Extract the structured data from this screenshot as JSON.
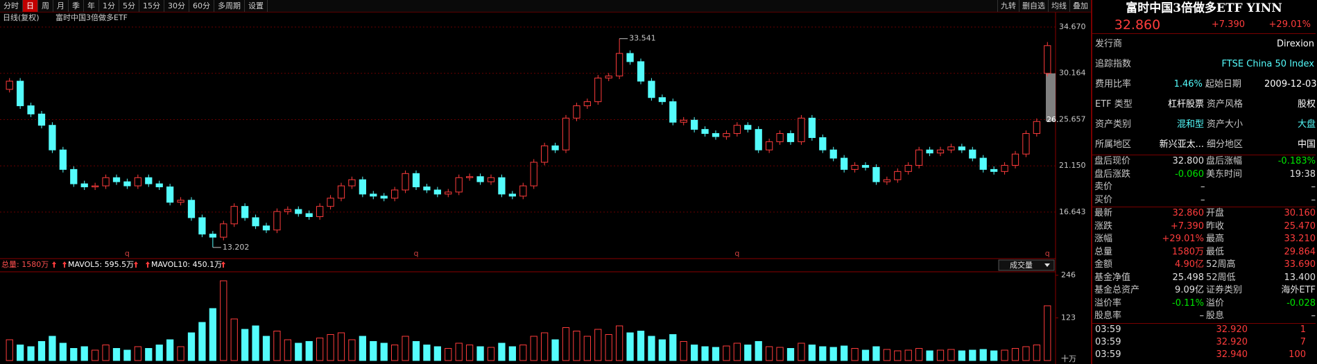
{
  "toolbar": {
    "tabs": [
      "分时",
      "日",
      "周",
      "月",
      "季",
      "年",
      "1分",
      "5分",
      "15分",
      "30分",
      "60分",
      "多周期",
      "设置"
    ],
    "active": "日",
    "tools": [
      "九转",
      "删自选",
      "均线",
      "叠加"
    ]
  },
  "chart_data": [
    {
      "type": "candlestick",
      "title": "日线(复权)",
      "subtitle": "富时中国3倍做多ETF",
      "open": [
        28.6,
        29.4,
        27.0,
        26.2,
        25.1,
        22.7,
        20.8,
        19.4,
        19.1,
        19.2,
        20.0,
        19.6,
        19.2,
        20.0,
        19.4,
        19.1,
        17.6,
        17.8,
        16.1,
        14.5,
        14.2,
        15.5,
        17.2,
        16.1,
        15.3,
        14.9,
        16.7,
        16.9,
        16.5,
        16.2,
        17.2,
        18.0,
        19.2,
        19.8,
        18.4,
        18.2,
        18.0,
        18.8,
        20.4,
        19.1,
        18.8,
        18.4,
        18.6,
        20.0,
        20.1,
        19.6,
        20.0,
        18.4,
        18.2,
        19.2,
        21.5,
        23.1,
        22.7,
        25.8,
        27.0,
        27.4,
        29.7,
        29.9,
        32.1,
        31.3,
        29.4,
        27.8,
        27.4,
        25.4,
        25.6,
        24.7,
        24.3,
        24.0,
        24.3,
        25.1,
        24.7,
        22.7,
        23.5,
        24.3,
        23.5,
        25.8,
        23.9,
        22.7,
        21.9,
        20.8,
        21.2,
        21.0,
        19.6,
        19.8,
        20.6,
        21.2,
        22.7,
        22.4,
        22.7,
        23.0,
        22.7,
        21.9,
        20.8,
        20.6,
        21.2,
        22.3,
        24.3,
        30.16
      ],
      "high": [
        29.7,
        29.7,
        27.3,
        26.5,
        25.4,
        23.0,
        21.1,
        19.7,
        19.5,
        20.3,
        20.3,
        19.9,
        20.3,
        20.3,
        19.7,
        19.4,
        18.1,
        18.1,
        16.4,
        14.8,
        15.8,
        17.5,
        17.5,
        16.4,
        15.6,
        17.0,
        17.2,
        17.2,
        16.8,
        17.5,
        18.3,
        19.5,
        20.1,
        20.1,
        18.7,
        18.5,
        19.1,
        20.7,
        20.7,
        19.4,
        19.1,
        18.9,
        20.3,
        20.4,
        20.4,
        20.3,
        20.3,
        18.7,
        19.5,
        21.8,
        23.4,
        23.4,
        26.1,
        27.3,
        27.7,
        30.0,
        30.2,
        33.541,
        32.4,
        31.6,
        29.7,
        28.1,
        27.7,
        25.9,
        25.9,
        25.0,
        24.6,
        24.6,
        25.4,
        25.4,
        25.0,
        23.8,
        24.6,
        24.6,
        26.1,
        26.1,
        24.2,
        23.0,
        22.2,
        21.5,
        21.5,
        21.3,
        20.1,
        20.9,
        21.5,
        23.0,
        23.0,
        23.0,
        23.3,
        23.3,
        23.0,
        22.2,
        21.1,
        21.5,
        22.6,
        24.6,
        25.77,
        33.21
      ],
      "low": [
        28.3,
        26.7,
        25.9,
        24.8,
        22.4,
        20.5,
        19.1,
        18.8,
        18.8,
        18.9,
        19.3,
        18.9,
        18.9,
        19.1,
        18.8,
        17.3,
        17.3,
        15.8,
        14.2,
        13.202,
        13.9,
        15.2,
        15.8,
        15.0,
        14.6,
        14.6,
        16.4,
        16.2,
        15.9,
        15.9,
        16.9,
        17.7,
        18.9,
        18.1,
        17.9,
        17.7,
        17.7,
        18.5,
        18.8,
        18.5,
        18.1,
        18.1,
        18.3,
        19.7,
        19.3,
        19.3,
        18.1,
        17.9,
        17.9,
        18.9,
        21.2,
        22.4,
        22.4,
        25.5,
        26.7,
        27.1,
        29.4,
        29.6,
        31.0,
        29.1,
        27.5,
        27.1,
        25.1,
        25.1,
        24.4,
        24.0,
        23.7,
        23.7,
        24.0,
        24.4,
        22.4,
        22.4,
        23.2,
        23.2,
        23.2,
        23.6,
        22.4,
        21.6,
        20.5,
        20.5,
        20.7,
        19.3,
        19.3,
        19.5,
        20.3,
        20.9,
        22.1,
        22.1,
        22.4,
        22.4,
        21.6,
        20.5,
        20.3,
        20.3,
        20.9,
        22.0,
        24.0,
        29.864
      ],
      "close": [
        29.4,
        27.0,
        26.2,
        25.1,
        22.7,
        20.8,
        19.4,
        19.1,
        19.2,
        20.0,
        19.6,
        19.2,
        20.0,
        19.4,
        19.1,
        17.6,
        17.8,
        16.1,
        14.5,
        14.2,
        15.5,
        17.2,
        16.1,
        15.3,
        14.9,
        16.7,
        16.9,
        16.5,
        16.2,
        17.2,
        18.0,
        19.2,
        19.8,
        18.4,
        18.2,
        18.0,
        18.8,
        20.4,
        19.1,
        18.8,
        18.4,
        18.6,
        20.0,
        20.1,
        19.6,
        20.0,
        18.4,
        18.2,
        19.2,
        21.5,
        23.1,
        22.7,
        25.8,
        27.0,
        27.4,
        29.7,
        29.9,
        32.1,
        31.3,
        29.4,
        27.8,
        27.4,
        25.4,
        25.6,
        24.7,
        24.3,
        24.0,
        24.3,
        25.1,
        24.7,
        22.7,
        23.5,
        24.3,
        23.5,
        25.8,
        23.9,
        22.7,
        21.9,
        20.8,
        21.2,
        21.0,
        19.6,
        19.8,
        20.6,
        21.2,
        22.7,
        22.4,
        22.7,
        23.0,
        22.7,
        21.9,
        20.8,
        20.6,
        21.2,
        22.3,
        24.3,
        25.47,
        32.86
      ],
      "up_color": "#ff3c3c",
      "down_color": "#54fcfc",
      "ylim": [
        12.18,
        36.09
      ],
      "yticks": [
        16.643,
        {
          "value": 21.15,
          "label": "21.150"
        },
        25.657,
        30.164,
        {
          "value": 34.67,
          "label": "34.670"
        }
      ],
      "grid": true,
      "annotations": [
        "26."
      ],
      "markers": [
        "q",
        "q",
        "q",
        "q"
      ]
    },
    {
      "type": "bar",
      "header": [
        "总量: 1580万",
        "MAVOL5: 595.5万",
        "MAVOL10: 450.1万"
      ],
      "indicator": "成交量",
      "unit": "十万",
      "values": [
        60,
        45,
        40,
        55,
        70,
        50,
        35,
        40,
        30,
        45,
        35,
        30,
        40,
        35,
        45,
        60,
        40,
        80,
        110,
        150,
        230,
        120,
        90,
        100,
        70,
        85,
        60,
        50,
        55,
        65,
        75,
        80,
        60,
        70,
        55,
        50,
        45,
        70,
        55,
        45,
        40,
        35,
        50,
        45,
        40,
        38,
        50,
        40,
        45,
        70,
        80,
        60,
        95,
        85,
        70,
        90,
        75,
        100,
        80,
        85,
        70,
        60,
        75,
        55,
        45,
        40,
        38,
        42,
        50,
        45,
        55,
        40,
        38,
        35,
        50,
        45,
        40,
        38,
        42,
        35,
        30,
        40,
        32,
        28,
        30,
        35,
        28,
        30,
        32,
        28,
        30,
        32,
        28,
        30,
        35,
        40,
        45,
        158
      ],
      "ylim": [
        0,
        250
      ],
      "yticks": [
        123,
        246
      ]
    }
  ],
  "panel": {
    "title": "富时中国3倍做多ETF YINN",
    "price": "32.860",
    "change": "+7.390",
    "percent": "+29.01%",
    "info": [
      [
        "发行商",
        "Direxion"
      ],
      [
        "追踪指数",
        "FTSE China 50 Index"
      ],
      [
        "费用比率",
        "1.46%",
        "起始日期",
        "2009-12-03"
      ],
      [
        "ETF 类型",
        "杠杆股票",
        "资产风格",
        "股权"
      ],
      [
        "资产类别",
        "混和型",
        "资产大小",
        "大盘"
      ],
      [
        "所属地区",
        "新兴亚太...",
        "细分地区",
        "中国"
      ]
    ],
    "quotes": [
      [
        "盘后现价",
        "32.800",
        "盘后涨幅",
        "-0.183%"
      ],
      [
        "盘后涨跌",
        "-0.060",
        "美东时间",
        "19:38"
      ],
      [
        "卖价",
        "–",
        "",
        "–"
      ],
      [
        "买价",
        "–",
        "",
        "–"
      ],
      [
        "最新",
        "32.860",
        "开盘",
        "30.160"
      ],
      [
        "涨跌",
        "+7.390",
        "昨收",
        "25.470"
      ],
      [
        "涨幅",
        "+29.01%",
        "最高",
        "33.210"
      ],
      [
        "总量",
        "1580万",
        "最低",
        "29.864"
      ],
      [
        "金额",
        "4.90亿",
        "52周高",
        "33.690"
      ],
      [
        "基金净值",
        "25.498",
        "52周低",
        "13.400"
      ],
      [
        "基金总资产",
        "9.09亿",
        "证券类别",
        "海外ETF"
      ],
      [
        "溢价率",
        "-0.11%",
        "溢价",
        "-0.028"
      ],
      [
        "股息率",
        "–",
        "股息",
        "–"
      ]
    ],
    "ticks": [
      [
        "03:59",
        "32.920",
        "1"
      ],
      [
        "03:59",
        "32.920",
        "7"
      ],
      [
        "03:59",
        "32.940",
        "100"
      ]
    ]
  }
}
